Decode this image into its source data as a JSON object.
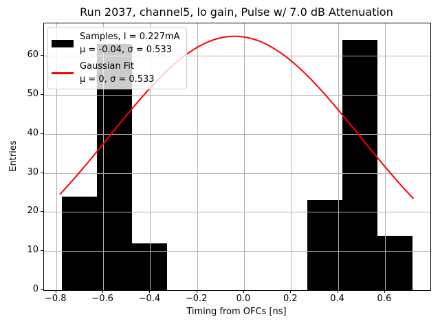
{
  "chart_data": {
    "type": "bar",
    "title": "Run 2037, channel5, lo gain, Pulse w/ 7.0 dB Attenuation",
    "xlabel": "Timing from OFCs [ns]",
    "ylabel": "Entries",
    "xlim": [
      -0.852,
      0.7936
    ],
    "ylim": [
      0,
      68.3
    ],
    "grid": true,
    "grid_color": "#b0b0b0",
    "bar_color": "#000000",
    "fit_color": "#ff0000",
    "axis_color": "#000000",
    "xticks": [
      {
        "v": -0.8,
        "label": "−0.8"
      },
      {
        "v": -0.6,
        "label": "−0.6"
      },
      {
        "v": -0.4,
        "label": "−0.4"
      },
      {
        "v": -0.2,
        "label": "−0.2"
      },
      {
        "v": 0.0,
        "label": "0.0"
      },
      {
        "v": 0.2,
        "label": "0.2"
      },
      {
        "v": 0.4,
        "label": "0.4"
      },
      {
        "v": 0.6,
        "label": "0.6"
      }
    ],
    "yticks": [
      {
        "v": 0,
        "label": "0"
      },
      {
        "v": 10,
        "label": "10"
      },
      {
        "v": 20,
        "label": "20"
      },
      {
        "v": 30,
        "label": "30"
      },
      {
        "v": 40,
        "label": "40"
      },
      {
        "v": 50,
        "label": "50"
      },
      {
        "v": 60,
        "label": "60"
      }
    ],
    "histogram": {
      "bin_start": -0.777,
      "bin_width": 0.1495,
      "counts": [
        24,
        63,
        12,
        0,
        0,
        0,
        0,
        23,
        64,
        14
      ],
      "total_entries": 200
    },
    "gaussian_fit": {
      "amplitude": 65,
      "mu": -0.04,
      "sigma": 0.533,
      "x_min": -0.783,
      "x_max": 0.72
    },
    "legend": [
      {
        "series": "samples",
        "line1": "Samples, I = 0.227mA",
        "line2": "μ = -0.04, σ = 0.533"
      },
      {
        "series": "gaussian_fit",
        "line1": "Gaussian Fit",
        "line2": "μ = 0, σ = 0.533"
      }
    ]
  }
}
